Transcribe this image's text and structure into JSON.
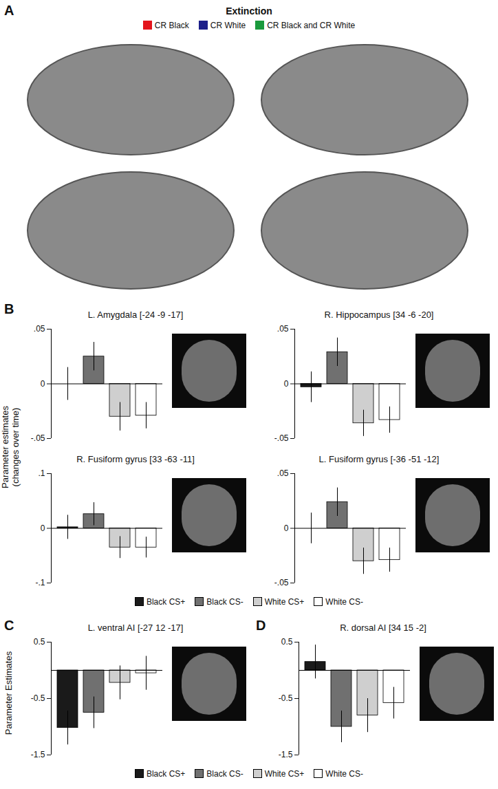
{
  "panels": {
    "A": {
      "label": "A",
      "title": "Extinction",
      "legend": [
        {
          "name": "CR Black",
          "color": "#e3141c"
        },
        {
          "name": "CR White",
          "color": "#1c1f8a"
        },
        {
          "name": "CR Black and CR White",
          "color": "#1a9a3c"
        }
      ]
    },
    "B": {
      "label": "B",
      "ylabel": [
        "Parameter estimates",
        "(changes over time)"
      ]
    },
    "C": {
      "label": "C"
    },
    "D": {
      "label": "D"
    }
  },
  "chart_data": [
    {
      "type": "bar",
      "panel": "B",
      "title": "L. Amygdala [-24 -9 -17]",
      "categories": [
        "Black CS+",
        "Black CS-",
        "White CS+",
        "White CS-"
      ],
      "colors": [
        "#1a1a1a",
        "#707070",
        "#cfcfcf",
        "#ffffff"
      ],
      "values": [
        0,
        0.025,
        -0.03,
        -0.029
      ],
      "errors": [
        0.015,
        0.013,
        0.013,
        0.012
      ],
      "ylim": [
        -0.05,
        0.05
      ],
      "yticks": [
        {
          "value": -0.05,
          "label": "-.05"
        },
        0,
        {
          "value": 0.05,
          "label": ".05"
        }
      ],
      "tick_labels": "y"
    },
    {
      "type": "bar",
      "panel": "B",
      "title": "R. Hippocampus [34 -6 -20]",
      "categories": [
        "Black CS+",
        "Black CS-",
        "White CS+",
        "White CS-"
      ],
      "colors": [
        "#1a1a1a",
        "#707070",
        "#cfcfcf",
        "#ffffff"
      ],
      "values": [
        -0.003,
        0.029,
        -0.036,
        -0.033
      ],
      "errors": [
        0.014,
        0.013,
        0.012,
        0.012
      ],
      "ylim": [
        -0.05,
        0.05
      ],
      "yticks": [
        {
          "value": -0.05,
          "label": "-.05"
        },
        0,
        {
          "value": 0.05,
          "label": ".05"
        }
      ],
      "tick_labels": "y"
    },
    {
      "type": "bar",
      "panel": "B",
      "title": "R. Fusiform gyrus [33 -63 -11]",
      "categories": [
        "Black CS+",
        "Black CS-",
        "White CS+",
        "White CS-"
      ],
      "colors": [
        "#1a1a1a",
        "#707070",
        "#cfcfcf",
        "#ffffff"
      ],
      "values": [
        0.002,
        0.026,
        -0.035,
        -0.035
      ],
      "errors": [
        0.022,
        0.021,
        0.02,
        0.019
      ],
      "ylim": [
        -0.1,
        0.1
      ],
      "yticks": [
        {
          "value": -0.1,
          "label": "-.1"
        },
        0,
        {
          "value": 0.1,
          "label": ".1"
        }
      ],
      "tick_labels": "y"
    },
    {
      "type": "bar",
      "panel": "B",
      "title": "L. Fusiform gyrus [-36 -51 -12]",
      "categories": [
        "Black CS+",
        "Black CS-",
        "White CS+",
        "White CS-"
      ],
      "colors": [
        "#1a1a1a",
        "#707070",
        "#cfcfcf",
        "#ffffff"
      ],
      "values": [
        0,
        0.024,
        -0.03,
        -0.029
      ],
      "errors": [
        0.014,
        0.013,
        0.012,
        0.011
      ],
      "ylim": [
        -0.05,
        0.05
      ],
      "yticks": [
        {
          "value": -0.05,
          "label": "-.05"
        },
        0,
        {
          "value": 0.05,
          "label": ".05"
        }
      ],
      "tick_labels": "y"
    },
    {
      "type": "bar",
      "panel": "C",
      "title": "L. ventral AI [-27 12 -17]",
      "ylabel": "Parameter Estimates",
      "categories": [
        "Black CS+",
        "Black CS-",
        "White CS+",
        "White CS-"
      ],
      "colors": [
        "#1a1a1a",
        "#707070",
        "#cfcfcf",
        "#ffffff"
      ],
      "values": [
        -1.02,
        -0.75,
        -0.22,
        -0.05
      ],
      "errors": [
        0.3,
        0.28,
        0.3,
        0.3
      ],
      "ylim": [
        -1.5,
        0.5
      ],
      "yticks": [
        -1.5,
        -0.5,
        0.5
      ],
      "tick_labels": "y"
    },
    {
      "type": "bar",
      "panel": "D",
      "title": "R. dorsal AI [34 15 -2]",
      "categories": [
        "Black CS+",
        "Black CS-",
        "White CS+",
        "White CS-"
      ],
      "colors": [
        "#1a1a1a",
        "#707070",
        "#cfcfcf",
        "#ffffff"
      ],
      "values": [
        0.15,
        -1.0,
        -0.8,
        -0.58
      ],
      "errors": [
        0.3,
        0.28,
        0.3,
        0.28
      ],
      "ylim": [
        -1.5,
        0.5
      ],
      "yticks": [
        -1.5,
        -0.5,
        0.5
      ],
      "tick_labels": "y"
    }
  ]
}
